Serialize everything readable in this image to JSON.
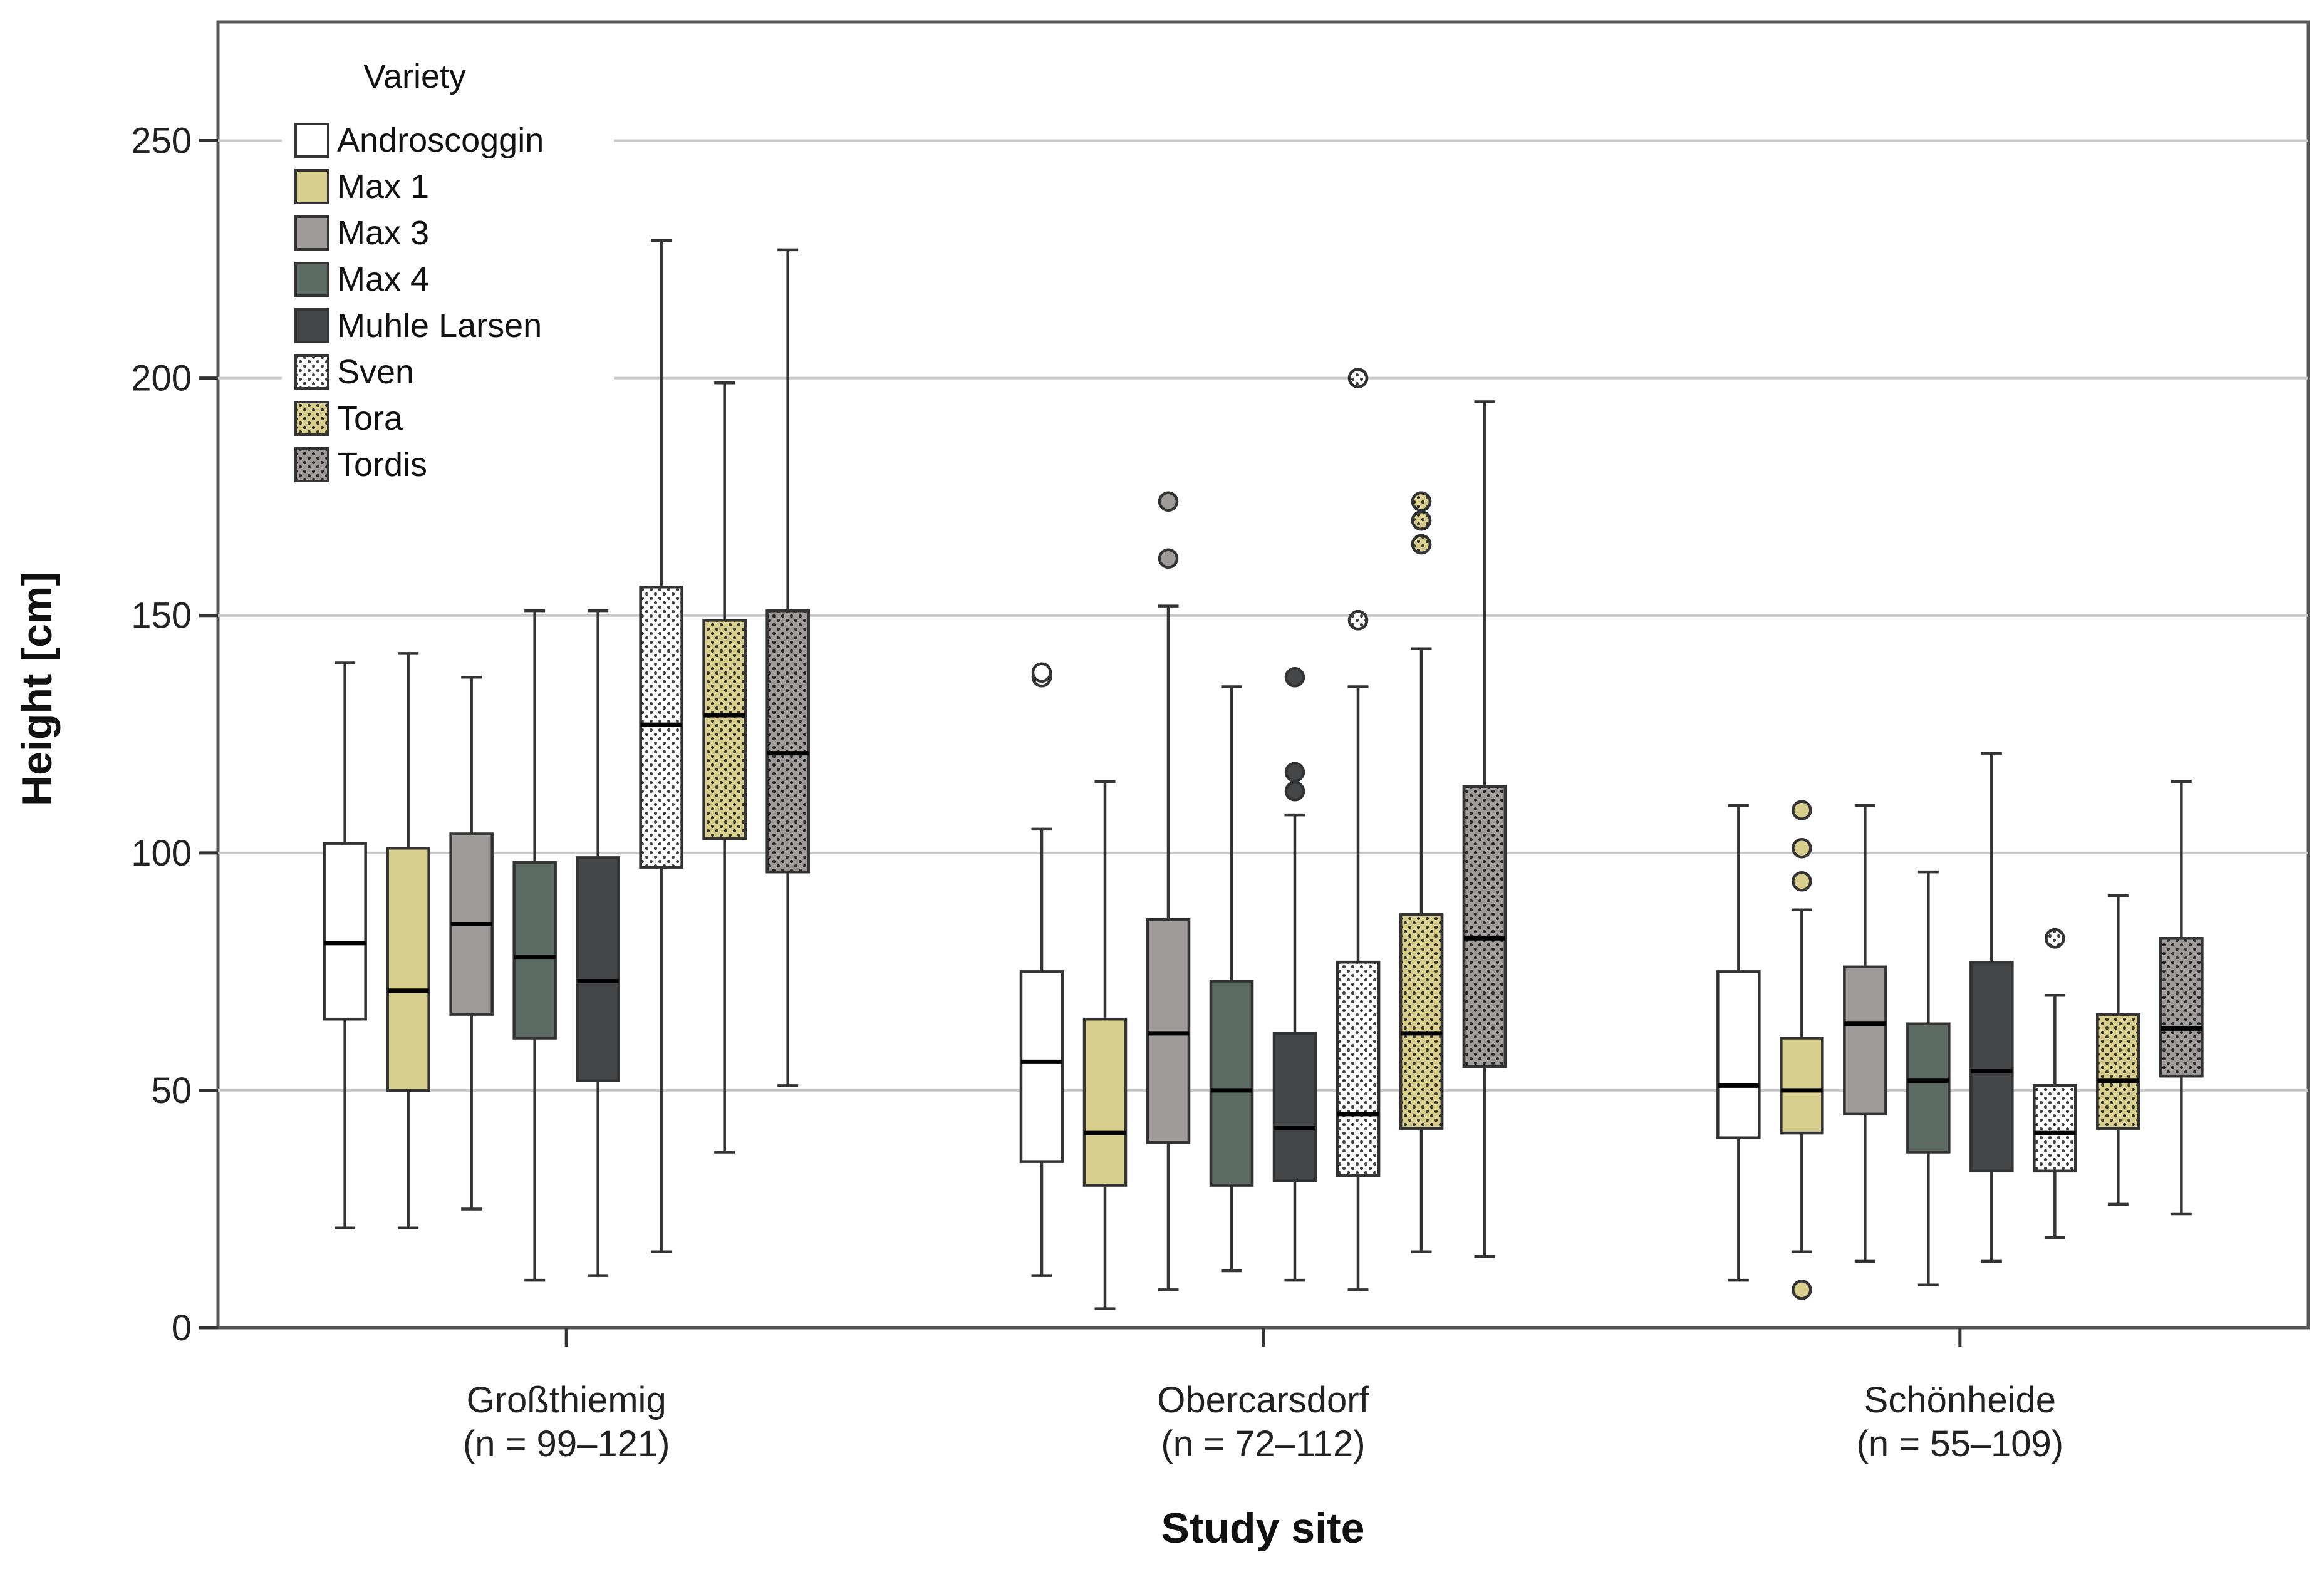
{
  "chart_data": {
    "type": "boxplot",
    "title": "",
    "xlabel": "Study site",
    "ylabel": "Height [cm]",
    "ylim": [
      0,
      275
    ],
    "yticks": [
      0,
      50,
      100,
      150,
      200,
      250
    ],
    "grid": true,
    "legend": {
      "title": "Variety",
      "placement": "top-left",
      "entries": [
        "Androscoggin",
        "Max 1",
        "Max 3",
        "Max 4",
        "Muhle Larsen",
        "Sven",
        "Tora",
        "Tordis"
      ]
    },
    "series_style": [
      {
        "name": "Androscoggin",
        "color": "#ffffff",
        "pattern": "none",
        "outlier_color": "#ffffff"
      },
      {
        "name": "Max 1",
        "color": "#d8cf8e",
        "pattern": "none",
        "outlier_color": "#d8cf8e"
      },
      {
        "name": "Max 3",
        "color": "#a09b9b",
        "pattern": "none",
        "outlier_color": "#a09b9b"
      },
      {
        "name": "Max 4",
        "color": "#5c6b63",
        "pattern": "none",
        "outlier_color": "#5c6b63"
      },
      {
        "name": "Muhle Larsen",
        "color": "#444648",
        "pattern": "none",
        "outlier_color": "#444648"
      },
      {
        "name": "Sven",
        "color": "#ffffff",
        "pattern": "dots",
        "outlier_color": "#ffffff"
      },
      {
        "name": "Tora",
        "color": "#d8cf8e",
        "pattern": "dots",
        "outlier_color": "#d8cf8e"
      },
      {
        "name": "Tordis",
        "color": "#a09b9b",
        "pattern": "dots",
        "outlier_color": "#a09b9b"
      }
    ],
    "categories": [
      {
        "name": "Großthiemig",
        "n_label": "(n = 99–121)",
        "boxes": [
          {
            "series": "Androscoggin",
            "min": 21,
            "q1": 65,
            "median": 81,
            "q3": 102,
            "max": 140,
            "outliers": []
          },
          {
            "series": "Max 1",
            "min": 21,
            "q1": 50,
            "median": 71,
            "q3": 101,
            "max": 142,
            "outliers": []
          },
          {
            "series": "Max 3",
            "min": 25,
            "q1": 66,
            "median": 85,
            "q3": 104,
            "max": 137,
            "outliers": []
          },
          {
            "series": "Max 4",
            "min": 10,
            "q1": 61,
            "median": 78,
            "q3": 98,
            "max": 151,
            "outliers": []
          },
          {
            "series": "Muhle Larsen",
            "min": 11,
            "q1": 52,
            "median": 73,
            "q3": 99,
            "max": 151,
            "outliers": []
          },
          {
            "series": "Sven",
            "min": 16,
            "q1": 97,
            "median": 127,
            "q3": 156,
            "max": 229,
            "outliers": []
          },
          {
            "series": "Tora",
            "min": 37,
            "q1": 103,
            "median": 129,
            "q3": 149,
            "max": 199,
            "outliers": []
          },
          {
            "series": "Tordis",
            "min": 51,
            "q1": 96,
            "median": 121,
            "q3": 151,
            "max": 227,
            "outliers": []
          }
        ]
      },
      {
        "name": "Obercarsdorf",
        "n_label": "(n = 72–112)",
        "boxes": [
          {
            "series": "Androscoggin",
            "min": 11,
            "q1": 35,
            "median": 56,
            "q3": 75,
            "max": 105,
            "outliers": [
              137,
              138
            ]
          },
          {
            "series": "Max 1",
            "min": 4,
            "q1": 30,
            "median": 41,
            "q3": 65,
            "max": 115,
            "outliers": []
          },
          {
            "series": "Max 3",
            "min": 8,
            "q1": 39,
            "median": 62,
            "q3": 86,
            "max": 152,
            "outliers": [
              162,
              174
            ]
          },
          {
            "series": "Max 4",
            "min": 12,
            "q1": 30,
            "median": 50,
            "q3": 73,
            "max": 135,
            "outliers": []
          },
          {
            "series": "Muhle Larsen",
            "min": 10,
            "q1": 31,
            "median": 42,
            "q3": 62,
            "max": 108,
            "outliers": [
              113,
              117,
              137
            ]
          },
          {
            "series": "Sven",
            "min": 8,
            "q1": 32,
            "median": 45,
            "q3": 77,
            "max": 135,
            "outliers": [
              149,
              200
            ]
          },
          {
            "series": "Tora",
            "min": 16,
            "q1": 42,
            "median": 62,
            "q3": 87,
            "max": 143,
            "outliers": [
              165,
              170,
              174
            ]
          },
          {
            "series": "Tordis",
            "min": 15,
            "q1": 55,
            "median": 82,
            "q3": 114,
            "max": 195,
            "outliers": []
          }
        ]
      },
      {
        "name": "Schönheide",
        "n_label": "(n = 55–109)",
        "boxes": [
          {
            "series": "Androscoggin",
            "min": 10,
            "q1": 40,
            "median": 51,
            "q3": 75,
            "max": 110,
            "outliers": []
          },
          {
            "series": "Max 1",
            "min": 16,
            "q1": 41,
            "median": 50,
            "q3": 61,
            "max": 88,
            "outliers": [
              8,
              94,
              101,
              109
            ]
          },
          {
            "series": "Max 3",
            "min": 14,
            "q1": 45,
            "median": 64,
            "q3": 76,
            "max": 110,
            "outliers": []
          },
          {
            "series": "Max 4",
            "min": 9,
            "q1": 37,
            "median": 52,
            "q3": 64,
            "max": 96,
            "outliers": []
          },
          {
            "series": "Muhle Larsen",
            "min": 14,
            "q1": 33,
            "median": 54,
            "q3": 77,
            "max": 121,
            "outliers": []
          },
          {
            "series": "Sven",
            "min": 19,
            "q1": 33,
            "median": 41,
            "q3": 51,
            "max": 70,
            "outliers": [
              82
            ]
          },
          {
            "series": "Tora",
            "min": 26,
            "q1": 42,
            "median": 52,
            "q3": 66,
            "max": 91,
            "outliers": []
          },
          {
            "series": "Tordis",
            "min": 24,
            "q1": 53,
            "median": 63,
            "q3": 82,
            "max": 115,
            "outliers": []
          }
        ]
      }
    ]
  }
}
